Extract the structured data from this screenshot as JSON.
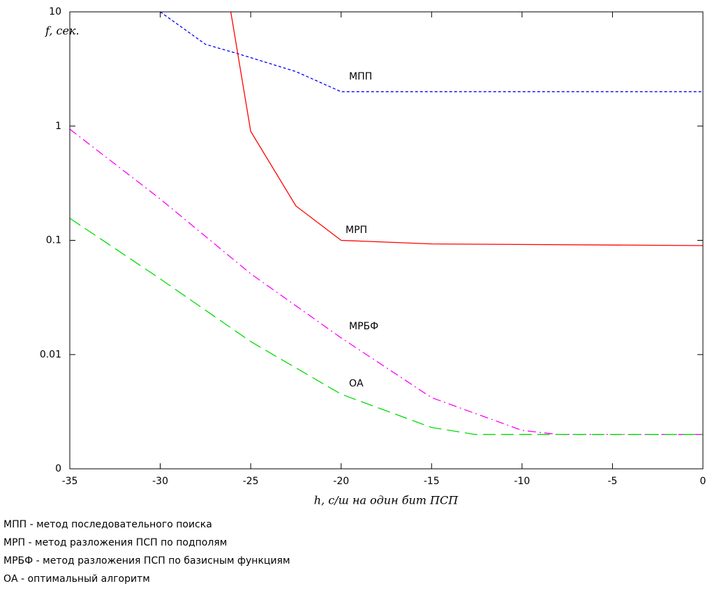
{
  "chart_data": {
    "type": "line",
    "y_label": "f, сек.",
    "x_label": "h, с/ш на один бит ПСП",
    "log_y": true,
    "xlim": [
      -35,
      0
    ],
    "xticks": [
      -35,
      -30,
      -25,
      -20,
      -15,
      -10,
      -5,
      0
    ],
    "ylim": [
      0.001,
      10
    ],
    "yticks": [
      {
        "value": 0.001,
        "label": "0"
      },
      0.01,
      0.1,
      1,
      10
    ],
    "series": [
      {
        "name": "МПП",
        "color": "#0000ff",
        "x": [
          -30,
          -27.5,
          -25.7,
          -22.5,
          -20,
          0
        ],
        "values": [
          10,
          5.2,
          4.3,
          3,
          2,
          2
        ]
      },
      {
        "name": "МРП",
        "color": "#ff0000",
        "x": [
          -26.1,
          -25,
          -22.5,
          -20,
          -15,
          0
        ],
        "values": [
          10,
          0.9,
          0.2,
          0.1,
          0.093,
          0.09
        ]
      },
      {
        "name": "МРБФ",
        "color": "#ff00ff",
        "x": [
          -35,
          -30,
          -25,
          -20,
          -15,
          -10,
          -8,
          0
        ],
        "values": [
          0.94,
          0.23,
          0.051,
          0.014,
          0.0042,
          0.00217,
          0.002,
          0.002
        ]
      },
      {
        "name": "ОА",
        "color": "#00dd00",
        "x": [
          -35,
          -30,
          -25,
          -20,
          -15,
          -12.6,
          0
        ],
        "values": [
          0.156,
          0.046,
          0.013,
          0.0045,
          0.0023,
          0.002,
          0.002
        ]
      }
    ],
    "notes": [
      "МПП - метод последовательного поиска",
      "МРП - метод разложения ПСП по подполям",
      "МРБФ - метод разложения ПСП по базисным функциям",
      "ОА - оптимальный алгоритм"
    ]
  }
}
